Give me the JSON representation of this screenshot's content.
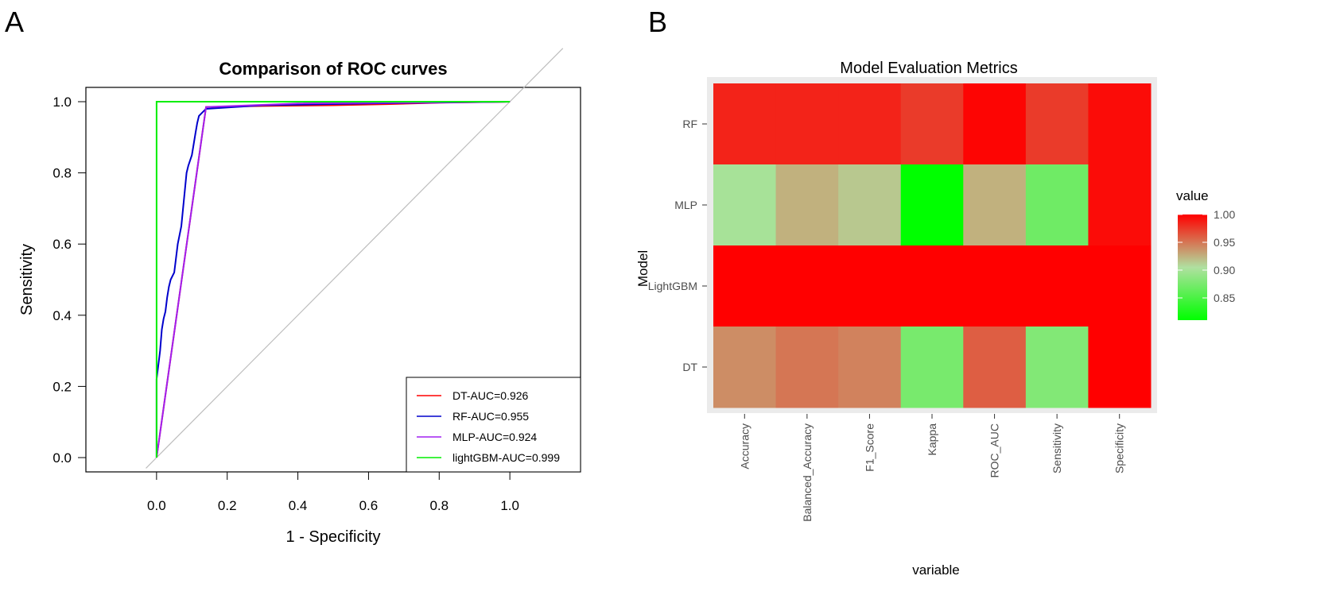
{
  "panels": {
    "a_label": "A",
    "b_label": "B"
  },
  "chart_data": [
    {
      "type": "line",
      "title": "Comparison of ROC curves",
      "xlabel": "1 - Specificity",
      "ylabel": "Sensitivity",
      "xlim": [
        -0.2,
        1.2
      ],
      "ylim": [
        0,
        1
      ],
      "xticks": [
        "0.0",
        "0.2",
        "0.4",
        "0.6",
        "0.8",
        "1.0"
      ],
      "yticks": [
        "0.0",
        "0.2",
        "0.4",
        "0.6",
        "0.8",
        "1.0"
      ],
      "legend_position": "bottom-right",
      "diagonal_reference": true,
      "series": [
        {
          "name": "DT-AUC=0.926",
          "color": "#ff0000",
          "points": [
            [
              0,
              0
            ],
            [
              0.14,
              0.985
            ],
            [
              0.3,
              0.988
            ],
            [
              0.5,
              0.99
            ],
            [
              0.65,
              0.993
            ],
            [
              0.8,
              0.997
            ],
            [
              1,
              1
            ]
          ]
        },
        {
          "name": "RF-AUC=0.955",
          "color": "#0000cc",
          "points": [
            [
              0,
              0
            ],
            [
              0,
              0.22
            ],
            [
              0.005,
              0.26
            ],
            [
              0.01,
              0.3
            ],
            [
              0.015,
              0.36
            ],
            [
              0.02,
              0.39
            ],
            [
              0.025,
              0.41
            ],
            [
              0.03,
              0.45
            ],
            [
              0.035,
              0.48
            ],
            [
              0.04,
              0.5
            ],
            [
              0.05,
              0.52
            ],
            [
              0.055,
              0.56
            ],
            [
              0.06,
              0.6
            ],
            [
              0.07,
              0.65
            ],
            [
              0.075,
              0.7
            ],
            [
              0.08,
              0.75
            ],
            [
              0.085,
              0.8
            ],
            [
              0.09,
              0.82
            ],
            [
              0.1,
              0.85
            ],
            [
              0.105,
              0.88
            ],
            [
              0.11,
              0.91
            ],
            [
              0.115,
              0.94
            ],
            [
              0.12,
              0.96
            ],
            [
              0.13,
              0.97
            ],
            [
              0.14,
              0.98
            ],
            [
              0.3,
              0.99
            ],
            [
              0.6,
              0.995
            ],
            [
              1,
              1
            ]
          ]
        },
        {
          "name": "MLP-AUC=0.924",
          "color": "#a020f0",
          "points": [
            [
              0,
              0
            ],
            [
              0.14,
              0.985
            ],
            [
              0.4,
              0.995
            ],
            [
              1,
              1
            ]
          ]
        },
        {
          "name": "lightGBM-AUC=0.999",
          "color": "#00ee00",
          "points": [
            [
              0,
              0
            ],
            [
              0,
              1
            ],
            [
              1,
              1
            ]
          ]
        }
      ]
    },
    {
      "type": "heatmap",
      "title": "Model Evaluation Metrics",
      "xlabel": "variable",
      "ylabel": "Model",
      "x_categories": [
        "Accuracy",
        "Balanced_Accuracy",
        "F1_Score",
        "Kappa",
        "ROC_AUC",
        "Sensitivity",
        "Specificity"
      ],
      "y_categories": [
        "RF",
        "MLP",
        "LightGBM",
        "DT"
      ],
      "values": [
        [
          0.985,
          0.985,
          0.985,
          0.975,
          0.998,
          0.975,
          0.995
        ],
        [
          0.9,
          0.925,
          0.915,
          0.81,
          0.925,
          0.87,
          0.995
        ],
        [
          1.0,
          1.0,
          1.0,
          1.0,
          1.0,
          1.0,
          1.0
        ],
        [
          0.94,
          0.95,
          0.945,
          0.875,
          0.96,
          0.88,
          1.0
        ]
      ],
      "legend_title": "value",
      "color_scale": {
        "low": "#00ff00",
        "mid": "#b0e0a0",
        "high": "#ff0000",
        "min": 0.81,
        "max": 1.0
      },
      "legend_ticks": [
        "0.85",
        "0.90",
        "0.95",
        "1.00"
      ],
      "legend_tick_values": [
        0.85,
        0.9,
        0.95,
        1.0
      ]
    }
  ]
}
